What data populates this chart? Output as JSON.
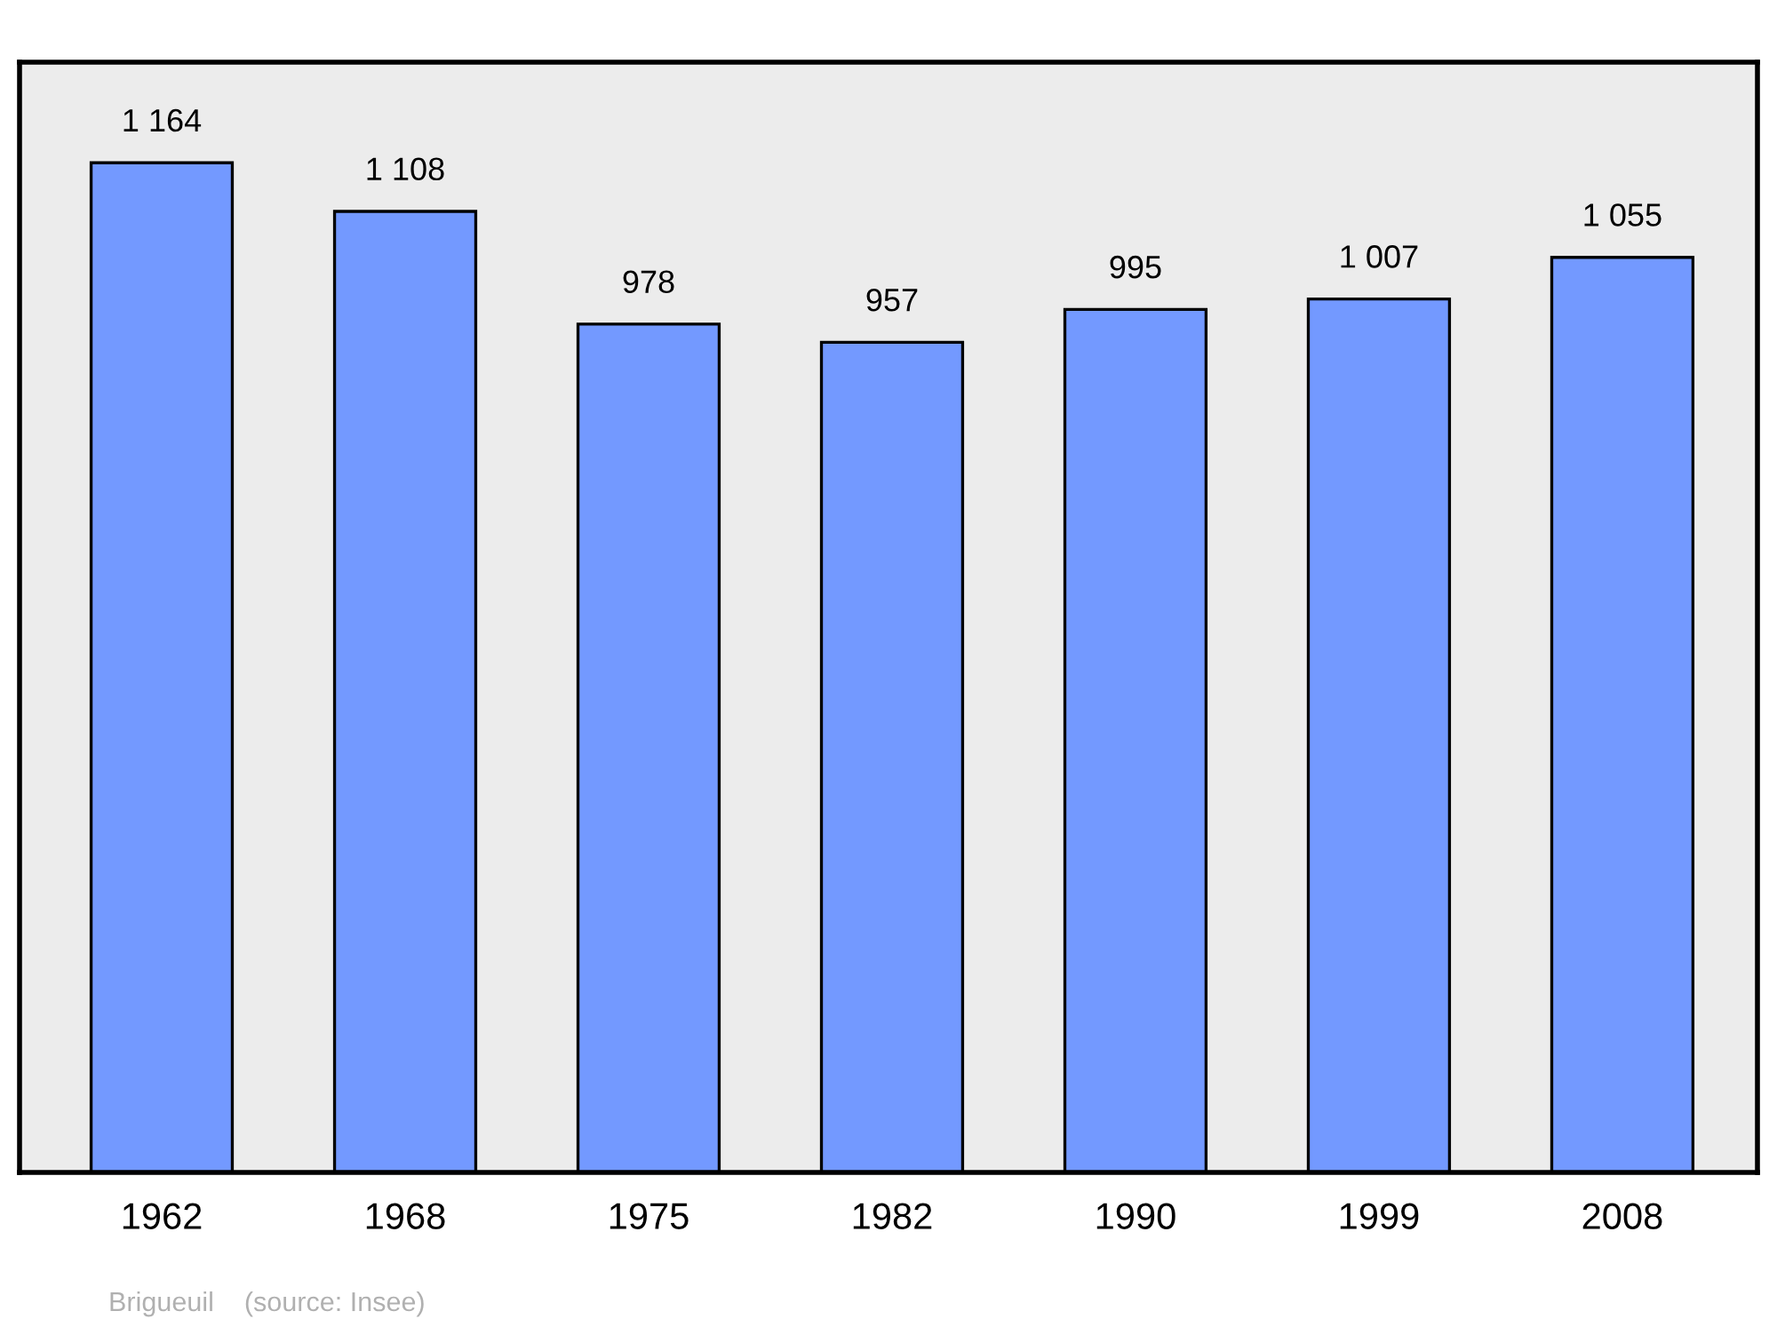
{
  "chart_data": {
    "type": "bar",
    "categories": [
      "1962",
      "1968",
      "1975",
      "1982",
      "1990",
      "1999",
      "2008"
    ],
    "values": [
      1164,
      1108,
      978,
      957,
      995,
      1007,
      1055
    ],
    "value_labels": [
      "1 164",
      "1 108",
      "978",
      "957",
      "995",
      "1 007",
      "1 055"
    ],
    "color": "#7399ff",
    "ylim": [
      0,
      1280
    ],
    "tick_labels": "x",
    "grid": false,
    "legend": false,
    "annotations": [
      "Brigueuil    (source: Insee)"
    ]
  }
}
